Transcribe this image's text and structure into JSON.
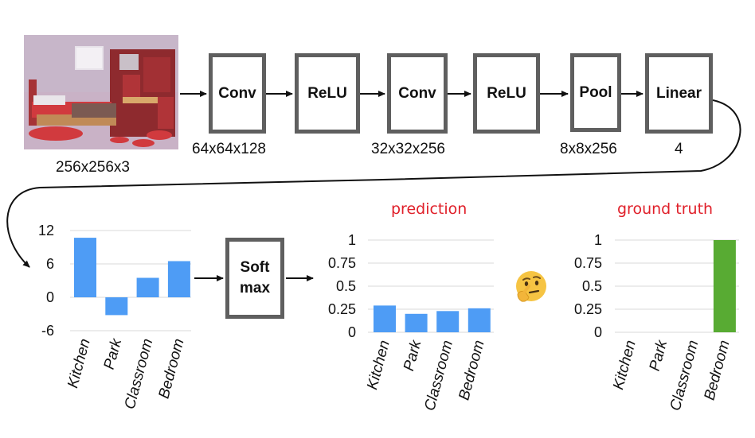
{
  "diagram": {
    "input_size": "256x256x3",
    "layers": [
      {
        "label": "Conv",
        "size": "64x64x128"
      },
      {
        "label": "ReLU",
        "size": ""
      },
      {
        "label": "Conv",
        "size": "32x32x256"
      },
      {
        "label": "ReLU",
        "size": ""
      },
      {
        "label": "Pool",
        "size": "8x8x256"
      },
      {
        "label": "Linear",
        "size": "4"
      }
    ],
    "softmax": {
      "line1": "Soft",
      "line2": "max"
    },
    "prediction_title": "prediction",
    "ground_truth_title": "ground truth",
    "thinking_icon": "thinking-face-icon",
    "colors": {
      "bar_blue": "#4e9cf5",
      "bar_green": "#58ab33",
      "title_red": "#e0202a",
      "box_border": "#5f5f5f"
    }
  },
  "chart_data": [
    {
      "type": "bar",
      "id": "logits",
      "categories": [
        "Kitchen",
        "Park",
        "Classroom",
        "Bedroom"
      ],
      "values": [
        10.7,
        -3.2,
        3.5,
        6.5
      ],
      "ylim": [
        -6,
        12
      ],
      "ytick_labels": [
        "12",
        "6",
        "0",
        "-6"
      ],
      "yticks": [
        12,
        6,
        0,
        -6
      ],
      "grid": true,
      "color": "#4e9cf5"
    },
    {
      "type": "bar",
      "id": "prediction",
      "title": "prediction",
      "categories": [
        "Kitchen",
        "Park",
        "Classroom",
        "Bedroom"
      ],
      "values": [
        0.29,
        0.2,
        0.23,
        0.26
      ],
      "ylim": [
        0,
        1
      ],
      "ytick_labels": [
        "1",
        "0.75",
        "0.5",
        "0.25",
        "0"
      ],
      "yticks": [
        1,
        0.75,
        0.5,
        0.25,
        0
      ],
      "grid": true,
      "color": "#4e9cf5"
    },
    {
      "type": "bar",
      "id": "ground_truth",
      "title": "ground truth",
      "categories": [
        "Kitchen",
        "Park",
        "Classroom",
        "Bedroom"
      ],
      "values": [
        0,
        0,
        0,
        1
      ],
      "ylim": [
        0,
        1
      ],
      "ytick_labels": [
        "1",
        "0.75",
        "0.5",
        "0.25",
        "0"
      ],
      "yticks": [
        1,
        0.75,
        0.5,
        0.25,
        0
      ],
      "grid": true,
      "color": "#58ab33"
    }
  ]
}
